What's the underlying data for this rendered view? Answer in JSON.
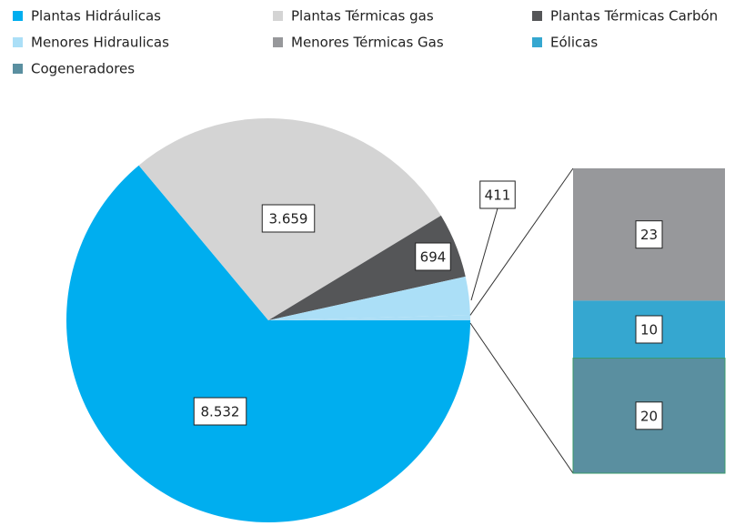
{
  "chart_data": {
    "type": "pie",
    "categories": [
      "Plantas Hidráulicas",
      "Plantas Térmicas gas",
      "Plantas Térmicas Carbón",
      "Menores Hidraulicas",
      "Menores Térmicas Gas",
      "Eólicas",
      "Cogeneradores"
    ],
    "values": [
      8532,
      3659,
      694,
      411,
      23,
      10,
      20
    ],
    "value_labels": [
      "8.532",
      "3.659",
      "694",
      "411",
      "23",
      "10",
      "20"
    ],
    "colors": [
      "#00aeef",
      "#d4d4d4",
      "#555658",
      "#abdff7",
      "#97989b",
      "#35a7d0",
      "#5a8fa0"
    ],
    "legend": "top"
  }
}
